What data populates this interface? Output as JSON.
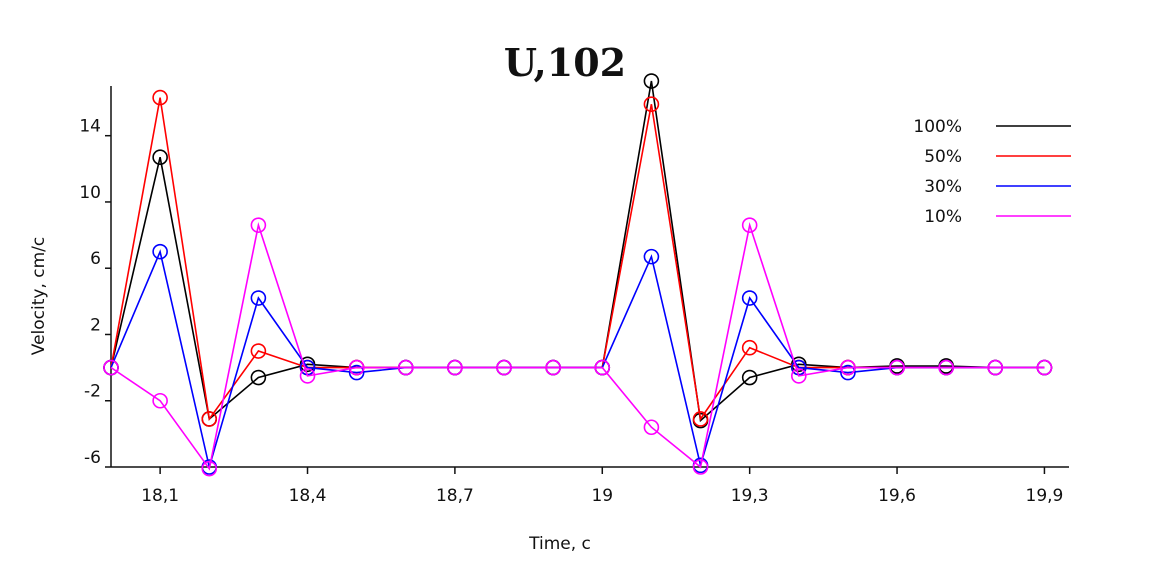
{
  "chart_data": {
    "type": "line",
    "title": "U,102",
    "xlabel": "Time, c",
    "ylabel": "Velocity, cm/c",
    "xlim": [
      17.95,
      19.9
    ],
    "ylim": [
      -6,
      17
    ],
    "xticks": [
      {
        "value": 18.05,
        "label": "18,1"
      },
      {
        "value": 18.35,
        "label": "18,4"
      },
      {
        "value": 18.65,
        "label": "18,7"
      },
      {
        "value": 18.95,
        "label": "19"
      },
      {
        "value": 19.25,
        "label": "19,3"
      },
      {
        "value": 19.55,
        "label": "19,6"
      },
      {
        "value": 19.85,
        "label": "19,9"
      }
    ],
    "yticks": [
      {
        "value": -6,
        "label": "-6"
      },
      {
        "value": -2,
        "label": "-2"
      },
      {
        "value": 2,
        "label": "2"
      },
      {
        "value": 6,
        "label": "6"
      },
      {
        "value": 10,
        "label": "10"
      },
      {
        "value": 14,
        "label": "14"
      }
    ],
    "x": [
      17.95,
      18.05,
      18.15,
      18.25,
      18.35,
      18.45,
      18.55,
      18.65,
      18.75,
      18.85,
      18.95,
      19.05,
      19.15,
      19.25,
      19.35,
      19.45,
      19.55,
      19.65,
      19.75,
      19.85
    ],
    "series": [
      {
        "name": "100%",
        "color": "#000000",
        "values": [
          0,
          12.7,
          -3.1,
          -0.6,
          0.2,
          0,
          0,
          0,
          0,
          0,
          0,
          17.3,
          -3.2,
          -0.6,
          0.2,
          0,
          0.1,
          0.1,
          0,
          0
        ]
      },
      {
        "name": "50%",
        "color": "#ff0000",
        "values": [
          0,
          16.3,
          -3.1,
          1.0,
          0,
          0,
          0,
          0,
          0,
          0,
          0,
          15.9,
          -3.1,
          1.2,
          0,
          0,
          0,
          0,
          0,
          0
        ]
      },
      {
        "name": "30%",
        "color": "#0000ff",
        "values": [
          0,
          7.0,
          -6.0,
          4.2,
          0,
          -0.3,
          0,
          0,
          0,
          0,
          0,
          6.7,
          -5.9,
          4.2,
          0,
          -0.3,
          0,
          0,
          0,
          0
        ]
      },
      {
        "name": "10%",
        "color": "#ff00ff",
        "values": [
          0,
          -2.0,
          -6.1,
          8.6,
          -0.5,
          0,
          0,
          0,
          0,
          0,
          0,
          -3.6,
          -6.0,
          8.6,
          -0.5,
          0,
          0,
          0,
          0,
          0
        ]
      }
    ],
    "legend": "top-right",
    "grid": false
  }
}
